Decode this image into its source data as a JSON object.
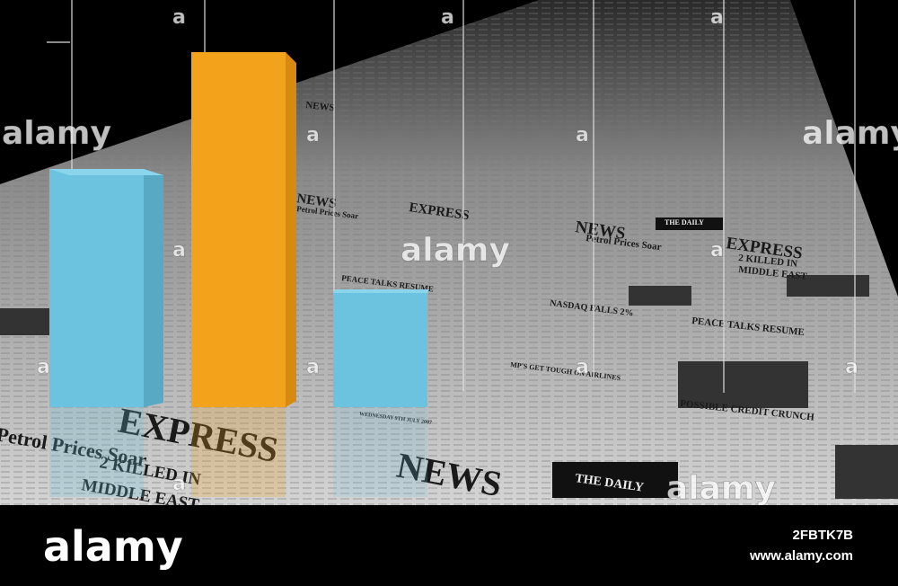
{
  "watermark": {
    "word": "alamy",
    "letter": "a"
  },
  "newspaper": {
    "masthead_left": "NEWS",
    "masthead_right": "EXPRESS",
    "tag": "THE DAILY",
    "headlines": [
      "Petrol Prices Soar",
      "2 KILLED IN",
      "MIDDLE EAST",
      "PEACE TALKS RESUME",
      "NASDAQ FALLS 2%",
      "MP'S GET TOUGH ON AIRLINES",
      "POSSIBLE CREDIT CRUNCH",
      "WEDNESDAY 9TH JULY 2007"
    ]
  },
  "footer": {
    "logo": "alamy",
    "image_id": "2FBTK7B",
    "url": "www.alamy.com"
  }
}
